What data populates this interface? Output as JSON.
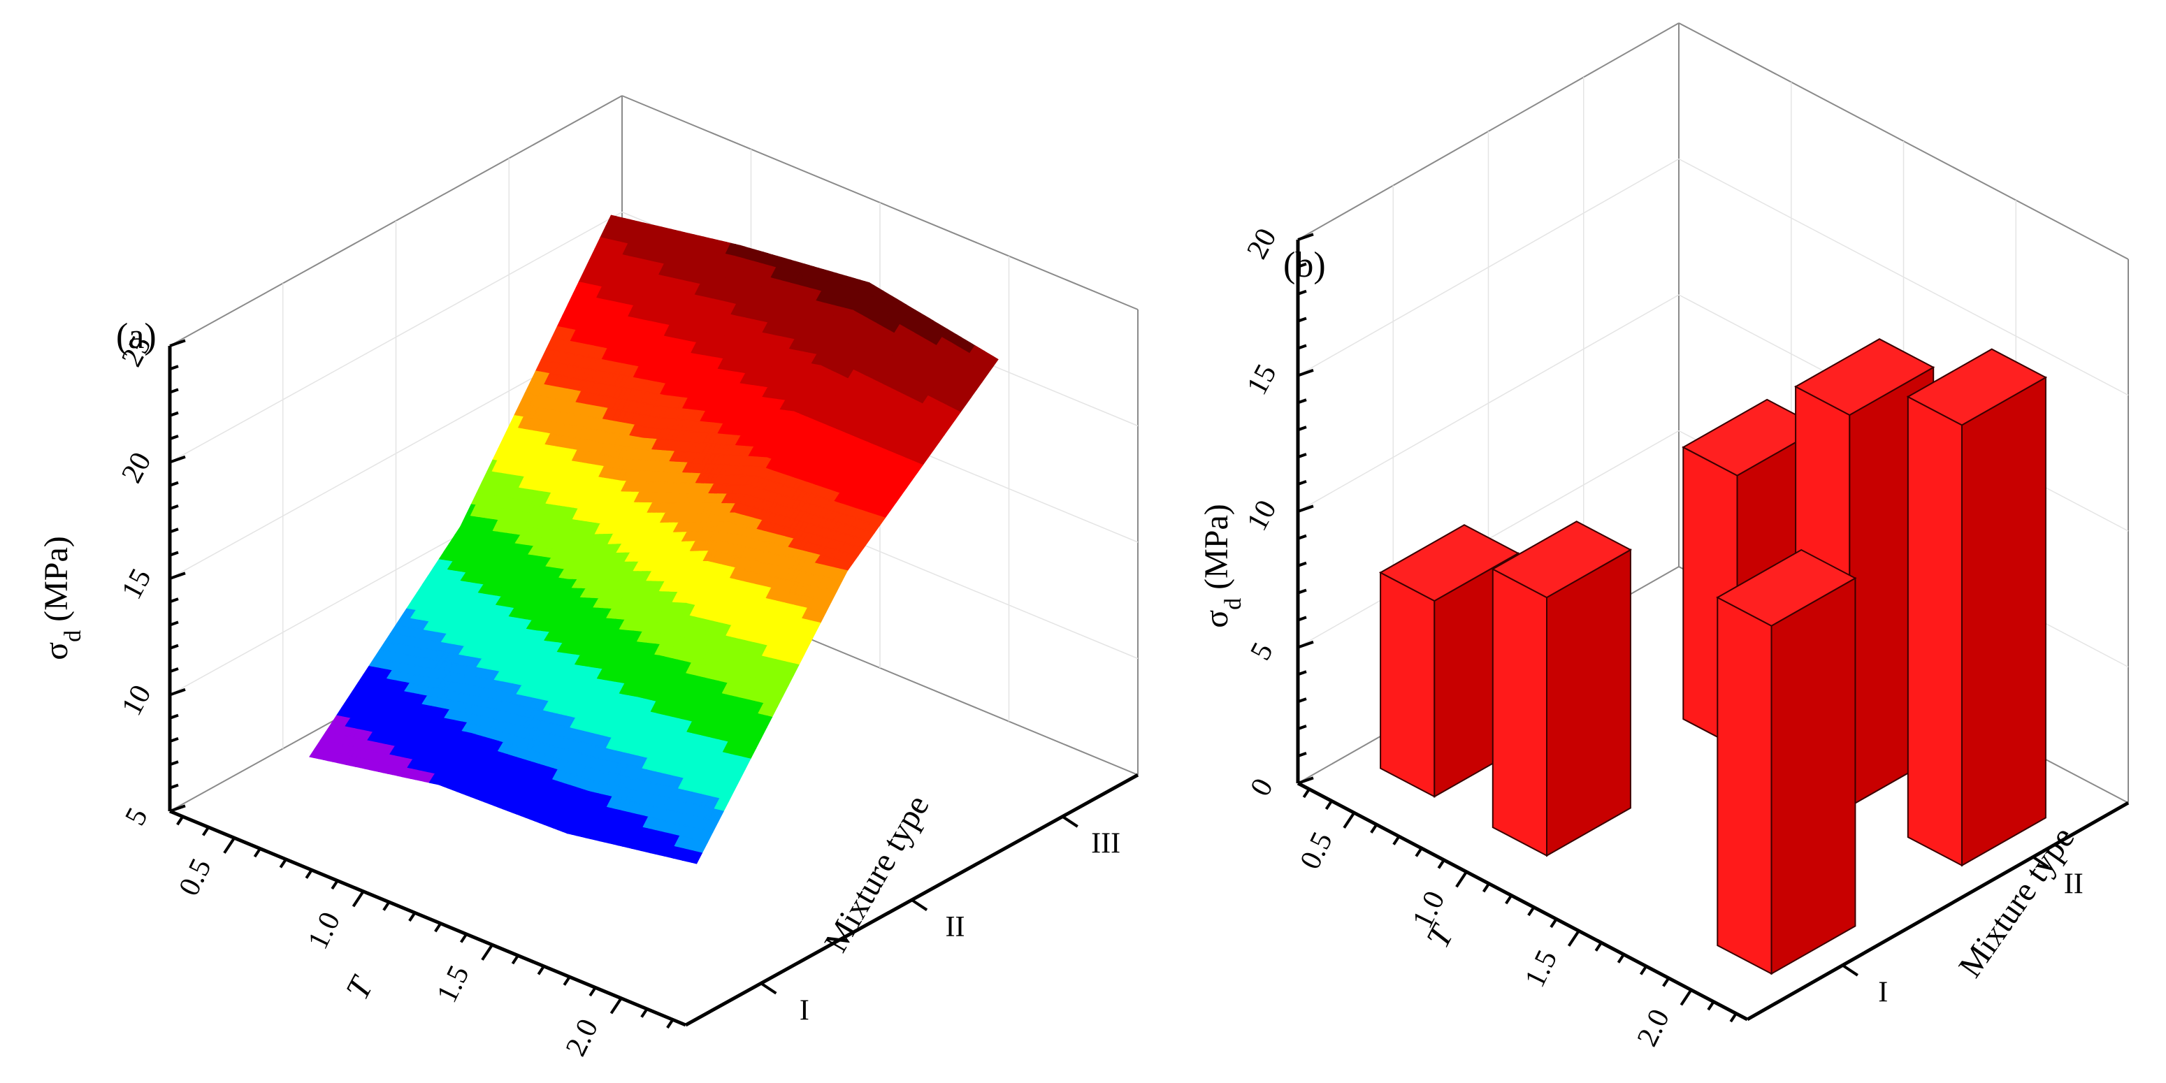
{
  "chart_data": [
    {
      "type": "surface",
      "panel_label": "(a)",
      "xlabel": "T",
      "ylabel": "Mixture type",
      "zlabel": "σ",
      "zlabel_sub": "d",
      "zlabel_unit": "(MPa)",
      "x_ticks": [
        "0.5",
        "1.0",
        "1.5",
        "2.0"
      ],
      "y_ticks": [
        "I",
        "II",
        "III"
      ],
      "z_ticks": [
        "5",
        "10",
        "15",
        "20",
        "25"
      ],
      "xlim": [
        0.25,
        2.25
      ],
      "ylim": [
        0.5,
        3.5
      ],
      "zlim": [
        5,
        25
      ],
      "grid": true,
      "x": [
        0.5,
        1.0,
        1.5,
        2.0
      ],
      "series": [
        {
          "category": "I",
          "values": [
            6.7,
            7.8,
            8.0,
            9.0
          ]
        },
        {
          "category": "II",
          "values": [
            13.0,
            14.5,
            17.0,
            18.0
          ]
        },
        {
          "category": "III",
          "values": [
            22.8,
            23.8,
            24.5,
            23.5
          ]
        }
      ],
      "colormap": [
        "#6a0a7a",
        "#9b00e6",
        "#0000ff",
        "#0099ff",
        "#00ffcc",
        "#00e600",
        "#88ff00",
        "#ffff00",
        "#ff9900",
        "#ff3300",
        "#ff0000",
        "#cc0000",
        "#a00000",
        "#660000"
      ]
    },
    {
      "type": "bar3d",
      "panel_label": "(b)",
      "xlabel": "T",
      "ylabel": "Mixture type",
      "zlabel": "σ",
      "zlabel_sub": "d",
      "zlabel_unit": "(MPa)",
      "x_ticks": [
        "0.5",
        "1.0",
        "1.5",
        "2.0"
      ],
      "y_ticks": [
        "I",
        "II"
      ],
      "z_ticks": [
        "0",
        "5",
        "10",
        "15",
        "20"
      ],
      "xlim": [
        0.25,
        2.25
      ],
      "ylim": [
        0.5,
        2.5
      ],
      "zlim": [
        0,
        20
      ],
      "grid": true,
      "bar_color": "#ff0000",
      "bars": [
        {
          "x": 0.5,
          "mixture": "I",
          "value": 7.2
        },
        {
          "x": 1.0,
          "mixture": "I",
          "value": 9.5
        },
        {
          "x": 2.0,
          "mixture": "I",
          "value": 12.8
        },
        {
          "x": 1.0,
          "mixture": "II",
          "value": 10.0
        },
        {
          "x": 1.5,
          "mixture": "II",
          "value": 14.4
        },
        {
          "x": 2.0,
          "mixture": "II",
          "value": 16.2
        }
      ]
    }
  ]
}
